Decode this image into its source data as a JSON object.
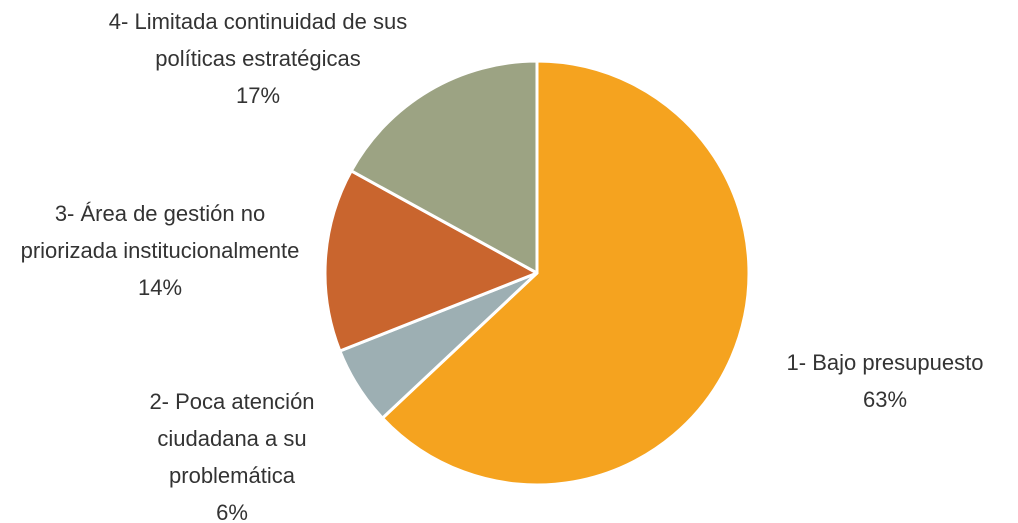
{
  "chart_data": {
    "type": "pie",
    "categories": [
      "1- Bajo presupuesto",
      "2- Poca atención ciudadana a su problemática",
      "3- Área de gestión no priorizada institucionalmente",
      "4- Limitada continuidad de sus políticas estratégicas"
    ],
    "values": [
      63,
      6,
      14,
      17
    ],
    "value_labels": [
      "63%",
      "6%",
      "14%",
      "17%"
    ],
    "colors": [
      "#f5a31f",
      "#9dafb3",
      "#c9652e",
      "#9ca383"
    ]
  }
}
